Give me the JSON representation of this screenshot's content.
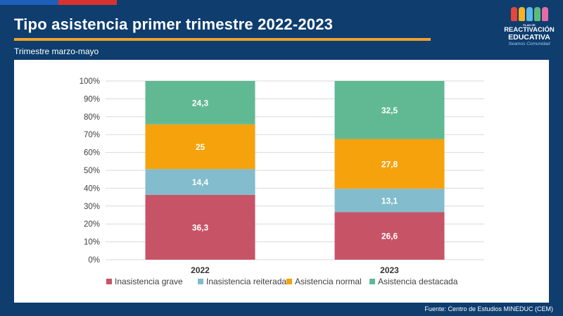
{
  "header": {
    "title": "Tipo asistencia primer trimestre 2022-2023",
    "subtitle": "Trimestre marzo-mayo"
  },
  "logo": {
    "line1": "PLAN DE",
    "line2": "REACTIVACIÓN",
    "line3": "EDUCATIVA",
    "line4": "Seamos Comunidad"
  },
  "footer": {
    "source": "Fuente: Centro de Estudios MINEDUC (CEM)"
  },
  "colors": {
    "background": "#0e3d6e",
    "accent": "#f0a12a",
    "inasistencia_grave": "#c75466",
    "inasistencia_reiterada": "#82bccd",
    "asistencia_normal": "#f5a20d",
    "asistencia_destacada": "#61b994"
  },
  "chart_data": {
    "type": "bar",
    "stacked": true,
    "categories": [
      "2022",
      "2023"
    ],
    "series": [
      {
        "name": "Inasistencia grave",
        "values": [
          36.3,
          26.6
        ],
        "labels": [
          "36,3",
          "26,6"
        ],
        "color": "#c75466"
      },
      {
        "name": "Inasistencia reiterada",
        "values": [
          14.4,
          13.1
        ],
        "labels": [
          "14,4",
          "13,1"
        ],
        "color": "#82bccd"
      },
      {
        "name": "Asistencia normal",
        "values": [
          25,
          27.8
        ],
        "labels": [
          "25",
          "27,8"
        ],
        "color": "#f5a20d"
      },
      {
        "name": "Asistencia destacada",
        "values": [
          24.3,
          32.5
        ],
        "labels": [
          "24,3",
          "32,5"
        ],
        "color": "#61b994"
      }
    ],
    "ylim": [
      0,
      100
    ],
    "yticks": [
      "0%",
      "10%",
      "20%",
      "30%",
      "40%",
      "50%",
      "60%",
      "70%",
      "80%",
      "90%",
      "100%"
    ],
    "grid": true,
    "legend_position": "bottom"
  }
}
